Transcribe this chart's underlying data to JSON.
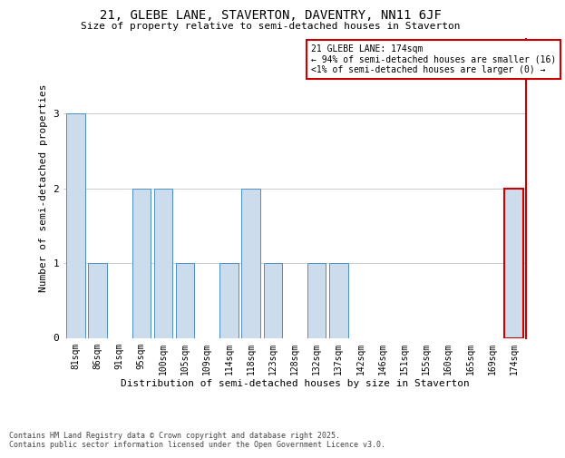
{
  "title1": "21, GLEBE LANE, STAVERTON, DAVENTRY, NN11 6JF",
  "title2": "Size of property relative to semi-detached houses in Staverton",
  "xlabel": "Distribution of semi-detached houses by size in Staverton",
  "ylabel": "Number of semi-detached properties",
  "categories": [
    "81sqm",
    "86sqm",
    "91sqm",
    "95sqm",
    "100sqm",
    "105sqm",
    "109sqm",
    "114sqm",
    "118sqm",
    "123sqm",
    "128sqm",
    "132sqm",
    "137sqm",
    "142sqm",
    "146sqm",
    "151sqm",
    "155sqm",
    "160sqm",
    "165sqm",
    "169sqm",
    "174sqm"
  ],
  "values": [
    3,
    1,
    0,
    2,
    2,
    1,
    0,
    1,
    2,
    1,
    0,
    1,
    1,
    0,
    0,
    0,
    0,
    0,
    0,
    0,
    2
  ],
  "bar_color": "#ccdcec",
  "bar_edge_color": "#4a90c4",
  "highlight_index": 20,
  "highlight_bar_edge_color": "#cc0000",
  "annotation_box_edge_color": "#cc0000",
  "annotation_text": "21 GLEBE LANE: 174sqm\n← 94% of semi-detached houses are smaller (16)\n<1% of semi-detached houses are larger (0) →",
  "annotation_fontsize": 7,
  "footer": "Contains HM Land Registry data © Crown copyright and database right 2025.\nContains public sector information licensed under the Open Government Licence v3.0.",
  "ylim": [
    0,
    4
  ],
  "yticks": [
    0,
    1,
    2,
    3
  ],
  "grid_color": "#cccccc",
  "title1_fontsize": 10,
  "title2_fontsize": 8,
  "ylabel_fontsize": 8,
  "xlabel_fontsize": 8,
  "tick_fontsize": 7,
  "footer_fontsize": 6
}
